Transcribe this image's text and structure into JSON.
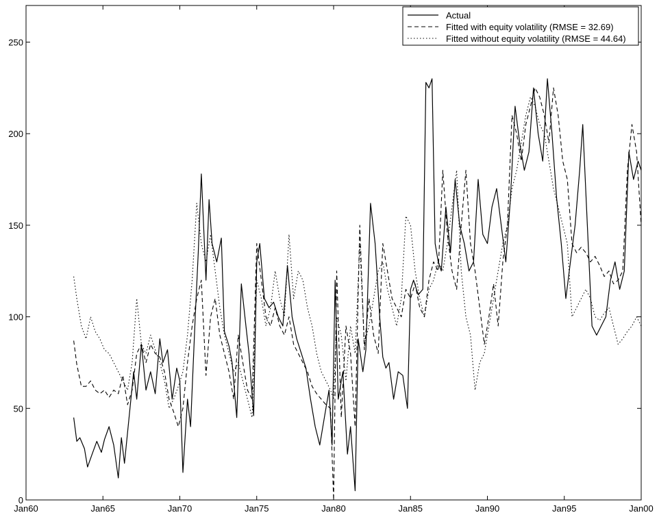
{
  "chart_data": {
    "type": "line",
    "title": "",
    "xlabel": "",
    "ylabel": "",
    "xlim": [
      1960,
      2000
    ],
    "ylim": [
      0,
      270
    ],
    "x_ticks": [
      {
        "value": 1960,
        "label": "Jan60"
      },
      {
        "value": 1965,
        "label": "Jan65"
      },
      {
        "value": 1970,
        "label": "Jan70"
      },
      {
        "value": 1975,
        "label": "Jan75"
      },
      {
        "value": 1980,
        "label": "Jan80"
      },
      {
        "value": 1985,
        "label": "Jan85"
      },
      {
        "value": 1990,
        "label": "Jan90"
      },
      {
        "value": 1995,
        "label": "Jan95"
      },
      {
        "value": 2000,
        "label": "Jan00"
      }
    ],
    "y_ticks": [
      {
        "value": 0,
        "label": "0"
      },
      {
        "value": 50,
        "label": "50"
      },
      {
        "value": 100,
        "label": "100"
      },
      {
        "value": 150,
        "label": "150"
      },
      {
        "value": 200,
        "label": "200"
      },
      {
        "value": 250,
        "label": "250"
      }
    ],
    "grid": false,
    "legend_position": "top-right",
    "series": [
      {
        "name": "Actual",
        "style": "solid",
        "color": "#000000",
        "x": [
          1963.1,
          1963.3,
          1963.5,
          1963.8,
          1964.0,
          1964.3,
          1964.6,
          1964.9,
          1965.1,
          1965.4,
          1965.7,
          1966.0,
          1966.2,
          1966.4,
          1966.7,
          1967.0,
          1967.2,
          1967.5,
          1967.8,
          1968.1,
          1968.4,
          1968.7,
          1968.9,
          1969.2,
          1969.5,
          1969.8,
          1970.0,
          1970.2,
          1970.5,
          1970.7,
          1971.0,
          1971.2,
          1971.4,
          1971.7,
          1971.9,
          1972.1,
          1972.4,
          1972.7,
          1972.9,
          1973.2,
          1973.4,
          1973.7,
          1974.0,
          1974.3,
          1974.5,
          1974.8,
          1975.0,
          1975.2,
          1975.5,
          1975.8,
          1976.1,
          1976.4,
          1976.7,
          1977.0,
          1977.3,
          1977.6,
          1977.9,
          1978.2,
          1978.5,
          1978.8,
          1979.1,
          1979.4,
          1979.7,
          1979.9,
          1980.1,
          1980.3,
          1980.6,
          1980.9,
          1981.1,
          1981.4,
          1981.6,
          1981.9,
          1982.1,
          1982.4,
          1982.7,
          1983.0,
          1983.2,
          1983.4,
          1983.6,
          1983.9,
          1984.2,
          1984.5,
          1984.8,
          1985.0,
          1985.2,
          1985.5,
          1985.8,
          1986.0,
          1986.2,
          1986.4,
          1986.6,
          1986.8,
          1987.0,
          1987.3,
          1987.6,
          1987.9,
          1988.2,
          1988.5,
          1988.8,
          1989.1,
          1989.4,
          1989.7,
          1990.0,
          1990.3,
          1990.6,
          1990.9,
          1991.2,
          1991.5,
          1991.8,
          1992.1,
          1992.4,
          1992.7,
          1993.0,
          1993.3,
          1993.6,
          1993.9,
          1994.2,
          1994.5,
          1994.8,
          1995.1,
          1995.4,
          1995.7,
          1996.0,
          1996.2,
          1996.5,
          1996.8,
          1997.1,
          1997.4,
          1997.7,
          1998.0,
          1998.3,
          1998.6,
          1998.9,
          1999.2,
          1999.5,
          1999.8,
          2000.0
        ],
        "y": [
          45,
          32,
          34,
          28,
          18,
          25,
          32,
          26,
          33,
          40,
          30,
          12,
          34,
          20,
          45,
          70,
          55,
          85,
          60,
          70,
          58,
          88,
          75,
          82,
          55,
          72,
          65,
          15,
          55,
          40,
          100,
          135,
          178,
          120,
          164,
          140,
          130,
          143,
          92,
          84,
          75,
          45,
          118,
          95,
          80,
          46,
          130,
          140,
          110,
          105,
          108,
          100,
          95,
          128,
          100,
          88,
          80,
          72,
          55,
          40,
          30,
          45,
          60,
          30,
          120,
          55,
          70,
          25,
          40,
          5,
          88,
          70,
          82,
          162,
          140,
          100,
          78,
          72,
          75,
          55,
          70,
          68,
          50,
          115,
          120,
          112,
          115,
          228,
          225,
          230,
          140,
          130,
          125,
          160,
          135,
          175,
          150,
          140,
          125,
          130,
          175,
          145,
          140,
          160,
          170,
          150,
          130,
          165,
          215,
          195,
          180,
          190,
          225,
          200,
          185,
          230,
          200,
          165,
          140,
          110,
          130,
          150,
          180,
          205,
          150,
          95,
          90,
          95,
          100,
          120,
          130,
          115,
          125,
          190,
          175,
          185,
          180
        ]
      },
      {
        "name": "Fitted with equity volatility (RMSE = 32.69)",
        "style": "dashed",
        "color": "#000000",
        "x": [
          1963.1,
          1963.3,
          1963.6,
          1963.9,
          1964.2,
          1964.5,
          1964.8,
          1965.1,
          1965.4,
          1965.7,
          1966.0,
          1966.3,
          1966.6,
          1966.9,
          1967.2,
          1967.5,
          1967.8,
          1968.1,
          1968.4,
          1968.7,
          1969.0,
          1969.3,
          1969.6,
          1969.9,
          1970.2,
          1970.5,
          1970.8,
          1971.1,
          1971.4,
          1971.7,
          1972.0,
          1972.3,
          1972.6,
          1972.9,
          1973.2,
          1973.5,
          1973.8,
          1974.1,
          1974.4,
          1974.7,
          1975.0,
          1975.3,
          1975.6,
          1975.9,
          1976.2,
          1976.5,
          1976.8,
          1977.1,
          1977.4,
          1977.7,
          1978.0,
          1978.3,
          1978.6,
          1978.9,
          1979.2,
          1979.5,
          1979.8,
          1980.0,
          1980.2,
          1980.5,
          1980.8,
          1981.1,
          1981.4,
          1981.7,
          1982.0,
          1982.3,
          1982.6,
          1982.9,
          1983.2,
          1983.5,
          1983.8,
          1984.1,
          1984.4,
          1984.7,
          1985.0,
          1985.3,
          1985.6,
          1985.9,
          1986.2,
          1986.5,
          1986.8,
          1987.1,
          1987.4,
          1987.7,
          1988.0,
          1988.3,
          1988.6,
          1988.9,
          1989.2,
          1989.5,
          1989.8,
          1990.1,
          1990.4,
          1990.7,
          1991.0,
          1991.3,
          1991.6,
          1991.9,
          1992.2,
          1992.5,
          1992.8,
          1993.1,
          1993.4,
          1993.7,
          1994.0,
          1994.3,
          1994.6,
          1994.9,
          1995.2,
          1995.5,
          1995.8,
          1996.1,
          1996.4,
          1996.7,
          1997.0,
          1997.3,
          1997.6,
          1997.9,
          1998.2,
          1998.5,
          1998.8,
          1999.1,
          1999.4,
          1999.7,
          2000.0
        ],
        "y": [
          87,
          74,
          62,
          62,
          65,
          60,
          58,
          60,
          56,
          60,
          58,
          68,
          52,
          60,
          80,
          85,
          75,
          85,
          80,
          78,
          70,
          55,
          48,
          40,
          50,
          75,
          95,
          110,
          120,
          68,
          100,
          110,
          90,
          80,
          70,
          55,
          90,
          75,
          60,
          55,
          140,
          120,
          100,
          95,
          105,
          95,
          90,
          100,
          85,
          80,
          75,
          70,
          62,
          58,
          55,
          52,
          50,
          0,
          125,
          45,
          95,
          80,
          40,
          150,
          82,
          110,
          90,
          80,
          140,
          125,
          110,
          105,
          100,
          115,
          110,
          118,
          105,
          100,
          120,
          130,
          125,
          180,
          145,
          125,
          115,
          150,
          180,
          140,
          125,
          105,
          85,
          100,
          118,
          95,
          130,
          150,
          210,
          200,
          185,
          205,
          215,
          225,
          220,
          210,
          195,
          225,
          210,
          185,
          175,
          140,
          135,
          138,
          135,
          130,
          133,
          128,
          122,
          125,
          118,
          120,
          125,
          180,
          205,
          190,
          150
        ]
      },
      {
        "name": "Fitted without equity volatility (RMSE = 44.64)",
        "style": "dotted",
        "color": "#000000",
        "x": [
          1963.1,
          1963.3,
          1963.6,
          1963.9,
          1964.2,
          1964.5,
          1964.8,
          1965.1,
          1965.4,
          1965.7,
          1966.0,
          1966.3,
          1966.6,
          1966.9,
          1967.2,
          1967.5,
          1967.8,
          1968.1,
          1968.4,
          1968.7,
          1969.0,
          1969.3,
          1969.6,
          1969.9,
          1970.2,
          1970.5,
          1970.8,
          1971.1,
          1971.4,
          1971.7,
          1972.0,
          1972.3,
          1972.6,
          1972.9,
          1973.2,
          1973.5,
          1973.8,
          1974.1,
          1974.4,
          1974.7,
          1975.0,
          1975.3,
          1975.6,
          1975.9,
          1976.2,
          1976.5,
          1976.8,
          1977.1,
          1977.4,
          1977.7,
          1978.0,
          1978.3,
          1978.6,
          1978.9,
          1979.2,
          1979.5,
          1979.8,
          1980.0,
          1980.2,
          1980.5,
          1980.8,
          1981.1,
          1981.4,
          1981.7,
          1982.0,
          1982.3,
          1982.6,
          1982.9,
          1983.2,
          1983.5,
          1983.8,
          1984.1,
          1984.4,
          1984.7,
          1985.0,
          1985.3,
          1985.6,
          1985.9,
          1986.2,
          1986.5,
          1986.8,
          1987.1,
          1987.4,
          1987.7,
          1988.0,
          1988.3,
          1988.6,
          1988.9,
          1989.2,
          1989.5,
          1989.8,
          1990.1,
          1990.4,
          1990.7,
          1991.0,
          1991.3,
          1991.6,
          1991.9,
          1992.2,
          1992.5,
          1992.8,
          1993.1,
          1993.4,
          1993.7,
          1994.0,
          1994.3,
          1994.6,
          1994.9,
          1995.2,
          1995.5,
          1995.8,
          1996.1,
          1996.4,
          1996.7,
          1997.0,
          1997.3,
          1997.6,
          1997.9,
          1998.2,
          1998.5,
          1998.8,
          1999.1,
          1999.4,
          1999.7,
          2000.0
        ],
        "y": [
          122,
          110,
          95,
          88,
          100,
          92,
          88,
          82,
          80,
          75,
          70,
          65,
          60,
          75,
          110,
          85,
          80,
          90,
          82,
          75,
          65,
          50,
          55,
          62,
          70,
          90,
          120,
          162,
          140,
          130,
          145,
          125,
          105,
          90,
          80,
          70,
          75,
          65,
          55,
          45,
          120,
          110,
          95,
          105,
          125,
          110,
          100,
          145,
          110,
          125,
          120,
          105,
          95,
          80,
          70,
          65,
          60,
          55,
          100,
          90,
          65,
          95,
          80,
          140,
          85,
          95,
          110,
          125,
          130,
          115,
          105,
          95,
          110,
          155,
          150,
          125,
          110,
          100,
          115,
          120,
          130,
          125,
          140,
          160,
          180,
          125,
          100,
          90,
          60,
          75,
          80,
          95,
          110,
          125,
          140,
          150,
          170,
          180,
          195,
          210,
          220,
          215,
          205,
          200,
          185,
          170,
          160,
          150,
          140,
          100,
          105,
          110,
          115,
          110,
          100,
          98,
          102,
          105,
          95,
          85,
          88,
          92,
          95,
          100,
          95
        ]
      }
    ]
  }
}
